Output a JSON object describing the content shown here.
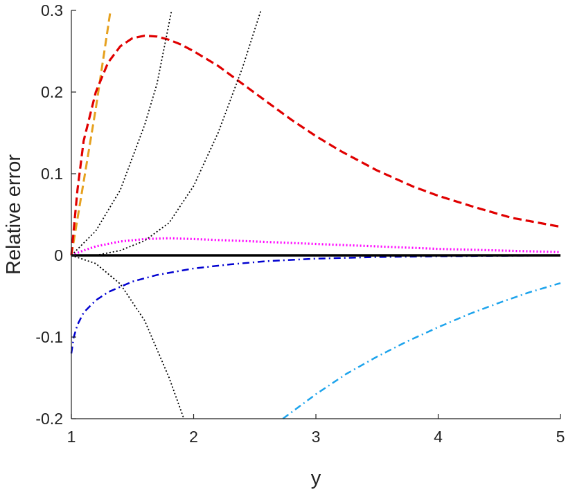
{
  "chart_data": {
    "type": "line",
    "title": "",
    "xlabel": "y",
    "ylabel": "Relative error",
    "xlim": [
      1,
      5
    ],
    "ylim": [
      -0.2,
      0.3
    ],
    "xticks": [
      1,
      2,
      3,
      4,
      5
    ],
    "xtick_labels": [
      "1",
      "2",
      "3",
      "4",
      "5"
    ],
    "yticks": [
      -0.2,
      -0.1,
      0,
      0.1,
      0.2,
      0.3
    ],
    "ytick_labels": [
      "-0.2",
      "-0.1",
      "0",
      "0.1",
      "0.2",
      "0.3"
    ],
    "grid": false,
    "legend": "none",
    "series": [
      {
        "color": "#e6a11f",
        "style": "dashed",
        "x": [
          1.0,
          1.1,
          1.2,
          1.3,
          1.32
        ],
        "y": [
          0.0,
          0.09,
          0.18,
          0.28,
          0.3
        ]
      },
      {
        "color": "#e00000",
        "style": "dashed",
        "x": [
          1.0,
          1.05,
          1.1,
          1.2,
          1.3,
          1.4,
          1.5,
          1.6,
          1.7,
          1.8,
          1.9,
          2.0,
          2.2,
          2.4,
          2.6,
          2.8,
          3.0,
          3.2,
          3.5,
          3.8,
          4.0,
          4.3,
          4.6,
          5.0
        ],
        "y": [
          0.0,
          0.08,
          0.14,
          0.2,
          0.236,
          0.256,
          0.266,
          0.269,
          0.268,
          0.264,
          0.258,
          0.25,
          0.232,
          0.21,
          0.188,
          0.166,
          0.146,
          0.128,
          0.104,
          0.084,
          0.073,
          0.059,
          0.046,
          0.035
        ]
      },
      {
        "color": "#ff00ff",
        "style": "dotted",
        "x": [
          1.0,
          1.1,
          1.2,
          1.4,
          1.6,
          1.8,
          2.0,
          2.5,
          3.0,
          3.5,
          4.0,
          4.5,
          5.0
        ],
        "y": [
          0.0,
          0.006,
          0.011,
          0.017,
          0.02,
          0.021,
          0.02,
          0.017,
          0.014,
          0.011,
          0.008,
          0.006,
          0.004
        ]
      },
      {
        "color": "#0000d0",
        "style": "dashdot",
        "x": [
          1.0,
          1.02,
          1.05,
          1.1,
          1.2,
          1.3,
          1.5,
          1.7,
          2.0,
          2.3,
          2.6,
          3.0,
          3.5,
          4.0,
          5.0
        ],
        "y": [
          -0.12,
          -0.1,
          -0.085,
          -0.07,
          -0.055,
          -0.045,
          -0.032,
          -0.024,
          -0.016,
          -0.011,
          -0.007,
          -0.004,
          -0.002,
          -0.001,
          0.0
        ]
      },
      {
        "color": "#1ca3ec",
        "style": "dashdot",
        "x": [
          2.73,
          3.0,
          3.25,
          3.5,
          3.75,
          4.0,
          4.25,
          4.5,
          4.75,
          5.0
        ],
        "y": [
          -0.2,
          -0.17,
          -0.145,
          -0.124,
          -0.105,
          -0.088,
          -0.072,
          -0.058,
          -0.045,
          -0.034
        ]
      },
      {
        "color": "#000000",
        "style": "dotted",
        "x": [
          1.0,
          1.2,
          1.4,
          1.6,
          1.7,
          1.8,
          1.82
        ],
        "y": [
          0.0,
          0.03,
          0.08,
          0.16,
          0.21,
          0.285,
          0.3
        ]
      },
      {
        "color": "#000000",
        "style": "dotted",
        "x": [
          1.2,
          1.4,
          1.6,
          1.8,
          2.0,
          2.2,
          2.4,
          2.55
        ],
        "y": [
          0.0,
          0.006,
          0.018,
          0.04,
          0.085,
          0.15,
          0.23,
          0.3
        ]
      },
      {
        "color": "#000000",
        "style": "dotted",
        "x": [
          1.0,
          1.2,
          1.4,
          1.6,
          1.8,
          1.92
        ],
        "y": [
          0.0,
          -0.01,
          -0.035,
          -0.08,
          -0.15,
          -0.2
        ]
      },
      {
        "color": "#000000",
        "style": "solid",
        "x": [
          1.0,
          5.0
        ],
        "y": [
          0.0,
          0.0
        ]
      }
    ]
  }
}
